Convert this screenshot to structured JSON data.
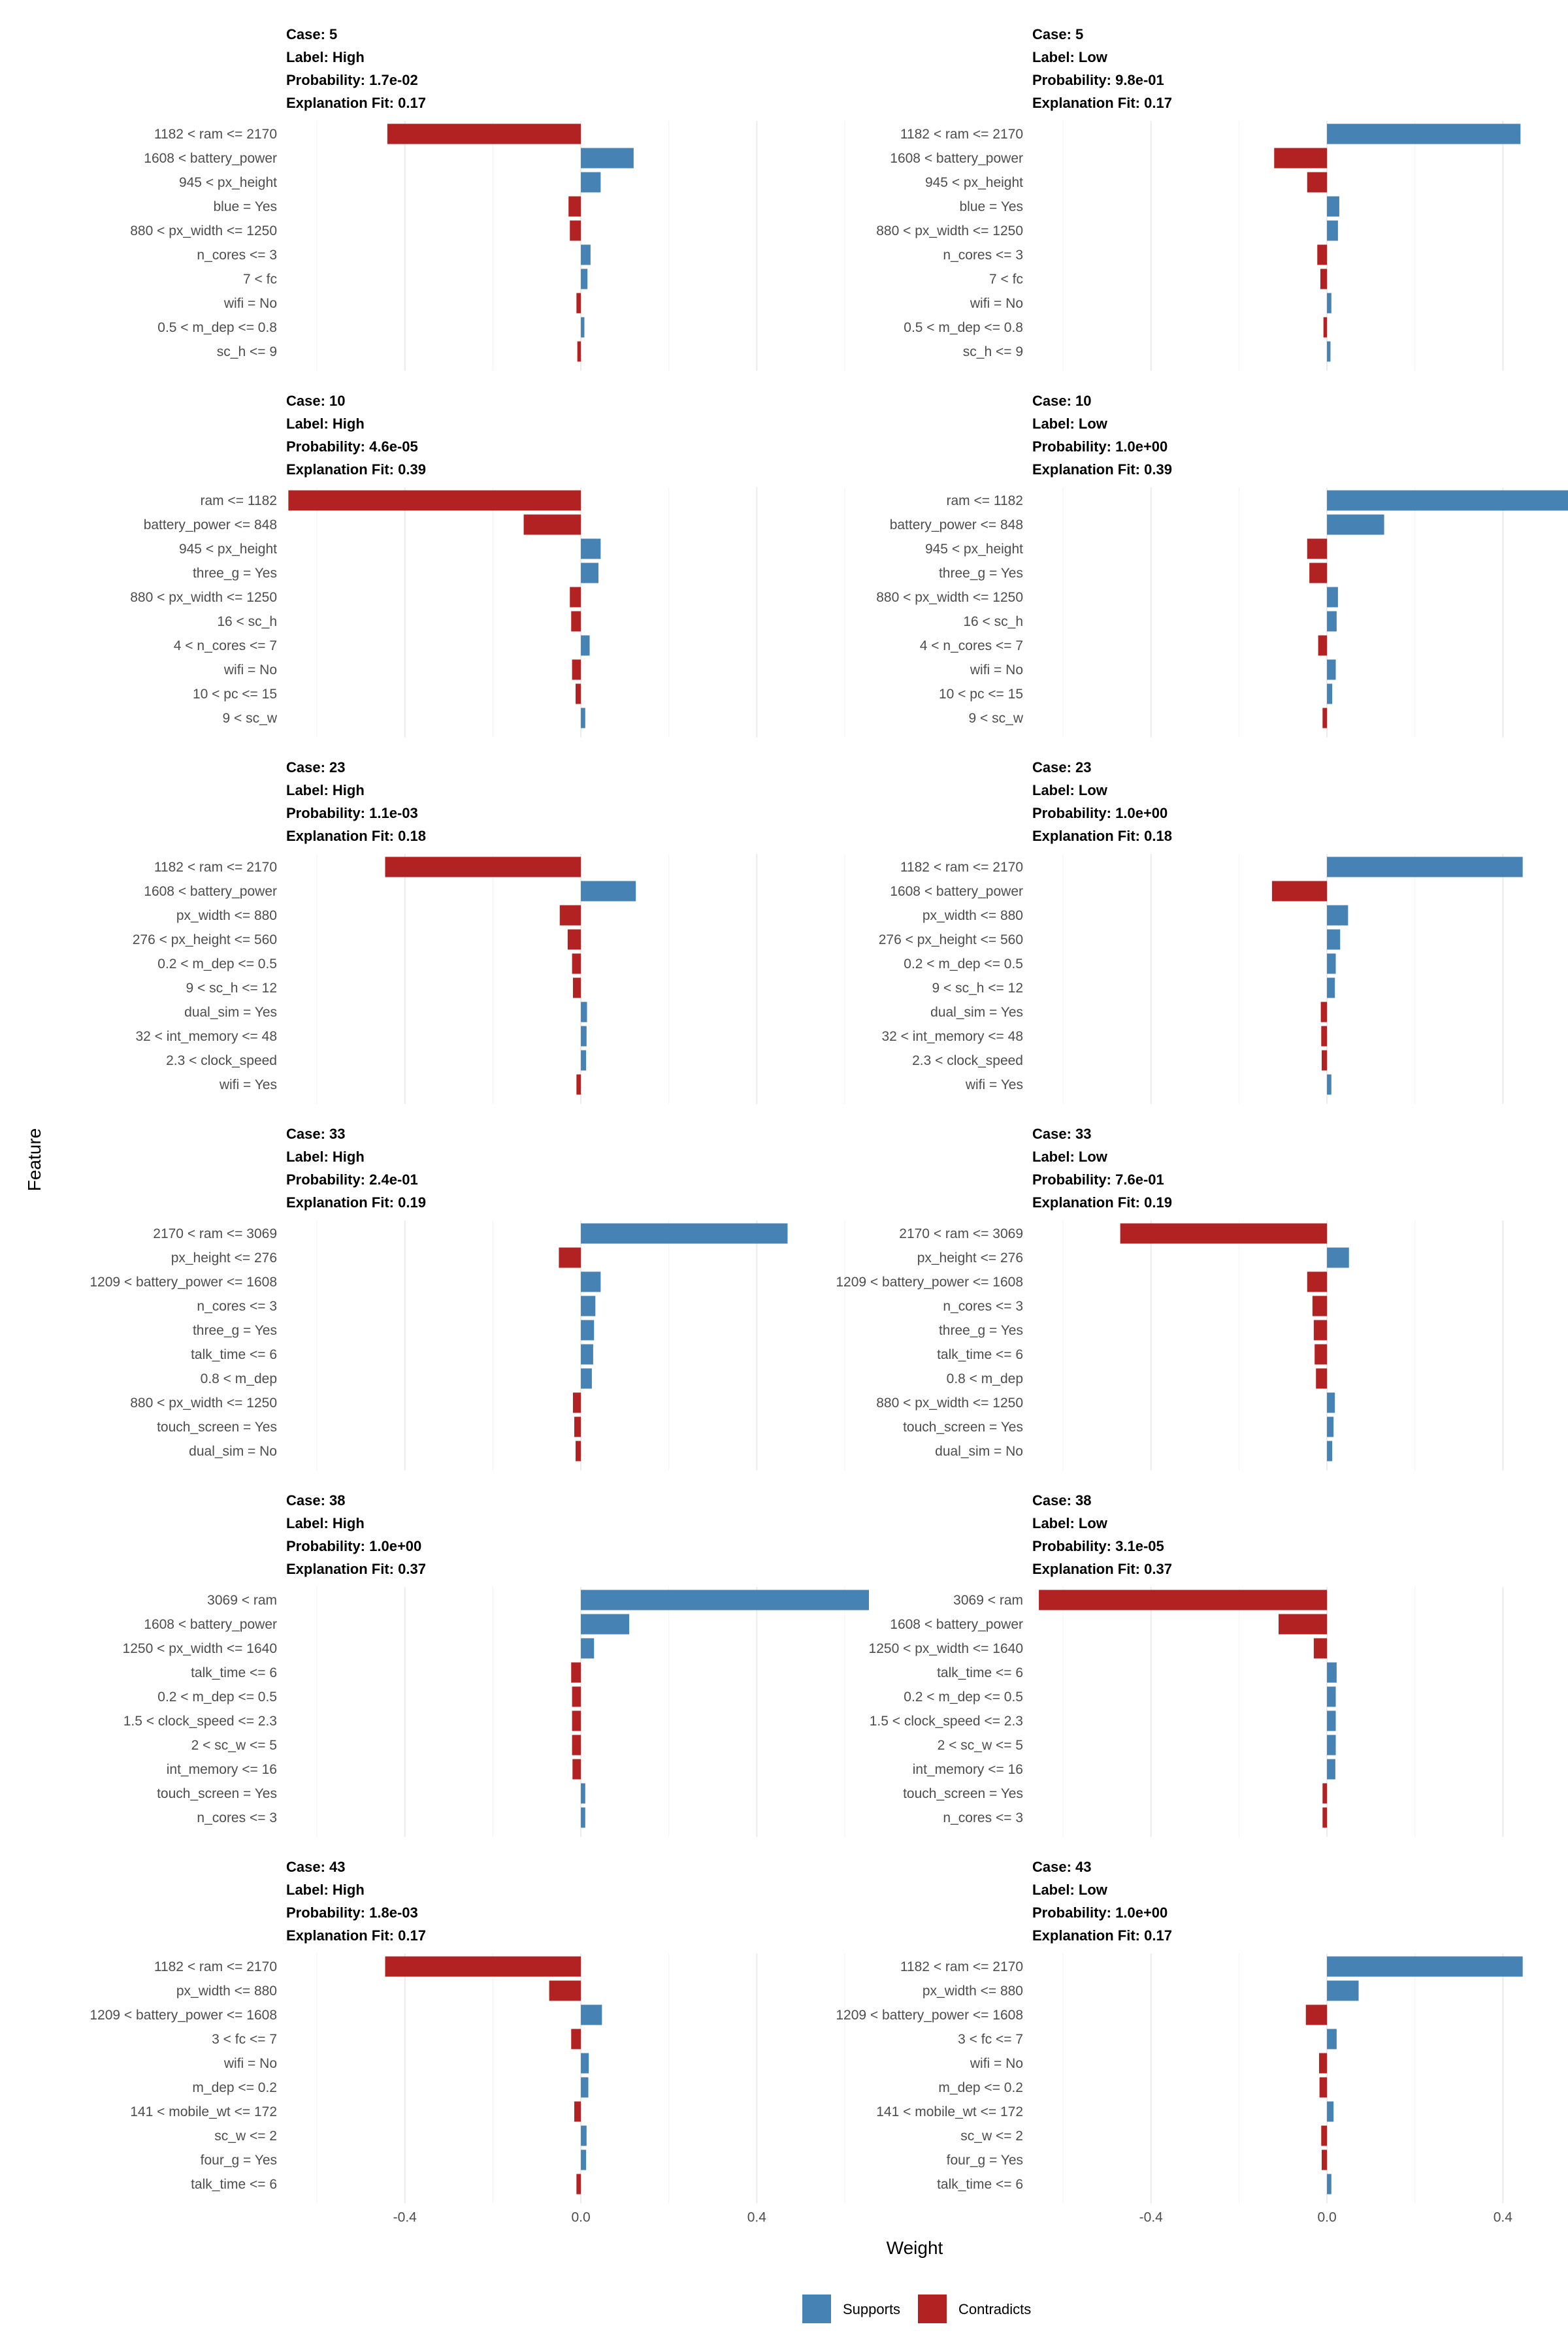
{
  "chart_data": {
    "type": "bar",
    "orientation": "horizontal",
    "xlabel": "Weight",
    "ylabel": "Feature",
    "xlim": [
      -0.67,
      0.6
    ],
    "xticks": [
      -0.4,
      0.0,
      0.4
    ],
    "xtick_labels": [
      "-0.4",
      "0.0",
      "0.4"
    ],
    "legend": {
      "position": "bottom",
      "items": [
        {
          "label": "Supports",
          "color": "#4682b4"
        },
        {
          "label": "Contradicts",
          "color": "#b22222"
        }
      ]
    },
    "colors": {
      "supports": "#4682b4",
      "contradicts": "#b22222"
    },
    "panels": [
      {
        "case": "Case: 5",
        "label": "Label: High",
        "probability": "Probability: 1.7e-02",
        "fit": "Explanation Fit: 0.17",
        "features": [
          "1182 < ram <= 2170",
          "1608 < battery_power",
          "945 < px_height",
          "blue = Yes",
          "880 < px_width <= 1250",
          "n_cores <= 3",
          "7 < fc",
          "wifi = No",
          "0.5 < m_dep <= 0.8",
          "sc_h <= 9"
        ],
        "weights": [
          -0.44,
          0.12,
          0.045,
          -0.028,
          -0.025,
          0.022,
          0.015,
          -0.01,
          0.008,
          -0.008
        ]
      },
      {
        "case": "Case: 5",
        "label": "Label: Low",
        "probability": "Probability: 9.8e-01",
        "fit": "Explanation Fit: 0.17",
        "features": [
          "1182 < ram <= 2170",
          "1608 < battery_power",
          "945 < px_height",
          "blue = Yes",
          "880 < px_width <= 1250",
          "n_cores <= 3",
          "7 < fc",
          "wifi = No",
          "0.5 < m_dep <= 0.8",
          "sc_h <= 9"
        ],
        "weights": [
          0.44,
          -0.12,
          -0.045,
          0.028,
          0.025,
          -0.022,
          -0.015,
          0.01,
          -0.008,
          0.008
        ]
      },
      {
        "case": "Case: 10",
        "label": "Label: High",
        "probability": "Probability: 4.6e-05",
        "fit": "Explanation Fit: 0.39",
        "features": [
          "ram <= 1182",
          "battery_power <= 848",
          "945 < px_height",
          "three_g = Yes",
          "880 < px_width <= 1250",
          "16 < sc_h",
          "4 < n_cores <= 7",
          "wifi = No",
          "10 < pc <= 15",
          "9 < sc_w"
        ],
        "weights": [
          -0.665,
          -0.13,
          0.045,
          0.04,
          -0.025,
          -0.022,
          0.02,
          -0.02,
          -0.012,
          0.01
        ]
      },
      {
        "case": "Case: 10",
        "label": "Label: Low",
        "probability": "Probability: 1.0e+00",
        "fit": "Explanation Fit: 0.39",
        "features": [
          "ram <= 1182",
          "battery_power <= 848",
          "945 < px_height",
          "three_g = Yes",
          "880 < px_width <= 1250",
          "16 < sc_h",
          "4 < n_cores <= 7",
          "wifi = No",
          "10 < pc <= 15",
          "9 < sc_w"
        ],
        "weights": [
          0.665,
          0.13,
          -0.045,
          -0.04,
          0.025,
          0.022,
          -0.02,
          0.02,
          0.012,
          -0.01
        ]
      },
      {
        "case": "Case: 23",
        "label": "Label: High",
        "probability": "Probability: 1.1e-03",
        "fit": "Explanation Fit: 0.18",
        "features": [
          "1182 < ram <= 2170",
          "1608 < battery_power",
          "px_width <= 880",
          "276 < px_height <= 560",
          "0.2 < m_dep <= 0.5",
          "9 < sc_h <= 12",
          "dual_sim = Yes",
          "32 < int_memory <= 48",
          "2.3 < clock_speed",
          "wifi = Yes"
        ],
        "weights": [
          -0.445,
          0.125,
          -0.048,
          -0.03,
          -0.02,
          -0.018,
          0.014,
          0.013,
          0.012,
          -0.01
        ]
      },
      {
        "case": "Case: 23",
        "label": "Label: Low",
        "probability": "Probability: 1.0e+00",
        "fit": "Explanation Fit: 0.18",
        "features": [
          "1182 < ram <= 2170",
          "1608 < battery_power",
          "px_width <= 880",
          "276 < px_height <= 560",
          "0.2 < m_dep <= 0.5",
          "9 < sc_h <= 12",
          "dual_sim = Yes",
          "32 < int_memory <= 48",
          "2.3 < clock_speed",
          "wifi = Yes"
        ],
        "weights": [
          0.445,
          -0.125,
          0.048,
          0.03,
          0.02,
          0.018,
          -0.014,
          -0.013,
          -0.012,
          0.01
        ]
      },
      {
        "case": "Case: 33",
        "label": "Label: High",
        "probability": "Probability: 2.4e-01",
        "fit": "Explanation Fit: 0.19",
        "features": [
          "2170 < ram <= 3069",
          "px_height <= 276",
          "1209 < battery_power <= 1608",
          "n_cores <= 3",
          "three_g = Yes",
          "talk_time <= 6",
          "0.8 < m_dep",
          "880 < px_width <= 1250",
          "touch_screen = Yes",
          "dual_sim = No"
        ],
        "weights": [
          0.47,
          -0.05,
          0.045,
          0.033,
          0.03,
          0.028,
          0.025,
          -0.018,
          -0.015,
          -0.012
        ]
      },
      {
        "case": "Case: 33",
        "label": "Label: Low",
        "probability": "Probability: 7.6e-01",
        "fit": "Explanation Fit: 0.19",
        "features": [
          "2170 < ram <= 3069",
          "px_height <= 276",
          "1209 < battery_power <= 1608",
          "n_cores <= 3",
          "three_g = Yes",
          "talk_time <= 6",
          "0.8 < m_dep",
          "880 < px_width <= 1250",
          "touch_screen = Yes",
          "dual_sim = No"
        ],
        "weights": [
          -0.47,
          0.05,
          -0.045,
          -0.033,
          -0.03,
          -0.028,
          -0.025,
          0.018,
          0.015,
          0.012
        ]
      },
      {
        "case": "Case: 38",
        "label": "Label: High",
        "probability": "Probability: 1.0e+00",
        "fit": "Explanation Fit: 0.37",
        "features": [
          "3069 < ram",
          "1608 < battery_power",
          "1250 < px_width <= 1640",
          "talk_time <= 6",
          "0.2 < m_dep <= 0.5",
          "1.5 < clock_speed <= 2.3",
          "2 < sc_w <= 5",
          "int_memory <= 16",
          "touch_screen = Yes",
          "n_cores <= 3"
        ],
        "weights": [
          0.655,
          0.11,
          0.03,
          -0.022,
          -0.02,
          -0.02,
          -0.02,
          -0.019,
          0.01,
          0.01
        ]
      },
      {
        "case": "Case: 38",
        "label": "Label: Low",
        "probability": "Probability: 3.1e-05",
        "fit": "Explanation Fit: 0.37",
        "features": [
          "3069 < ram",
          "1608 < battery_power",
          "1250 < px_width <= 1640",
          "talk_time <= 6",
          "0.2 < m_dep <= 0.5",
          "1.5 < clock_speed <= 2.3",
          "2 < sc_w <= 5",
          "int_memory <= 16",
          "touch_screen = Yes",
          "n_cores <= 3"
        ],
        "weights": [
          -0.655,
          -0.11,
          -0.03,
          0.022,
          0.02,
          0.02,
          0.02,
          0.019,
          -0.01,
          -0.01
        ]
      },
      {
        "case": "Case: 43",
        "label": "Label: High",
        "probability": "Probability: 1.8e-03",
        "fit": "Explanation Fit: 0.17",
        "features": [
          "1182 < ram <= 2170",
          "px_width <= 880",
          "1209 < battery_power <= 1608",
          "3 < fc <= 7",
          "wifi = No",
          "m_dep <= 0.2",
          "141 < mobile_wt <= 172",
          "sc_w <= 2",
          "four_g = Yes",
          "talk_time <= 6"
        ],
        "weights": [
          -0.445,
          -0.072,
          0.048,
          -0.022,
          0.018,
          0.017,
          -0.015,
          0.013,
          0.012,
          -0.01
        ]
      },
      {
        "case": "Case: 43",
        "label": "Label: Low",
        "probability": "Probability: 1.0e+00",
        "fit": "Explanation Fit: 0.17",
        "features": [
          "1182 < ram <= 2170",
          "px_width <= 880",
          "1209 < battery_power <= 1608",
          "3 < fc <= 7",
          "wifi = No",
          "m_dep <= 0.2",
          "141 < mobile_wt <= 172",
          "sc_w <= 2",
          "four_g = Yes",
          "talk_time <= 6"
        ],
        "weights": [
          0.445,
          0.072,
          -0.048,
          0.022,
          -0.018,
          -0.017,
          0.015,
          -0.013,
          -0.012,
          0.01
        ]
      }
    ]
  }
}
